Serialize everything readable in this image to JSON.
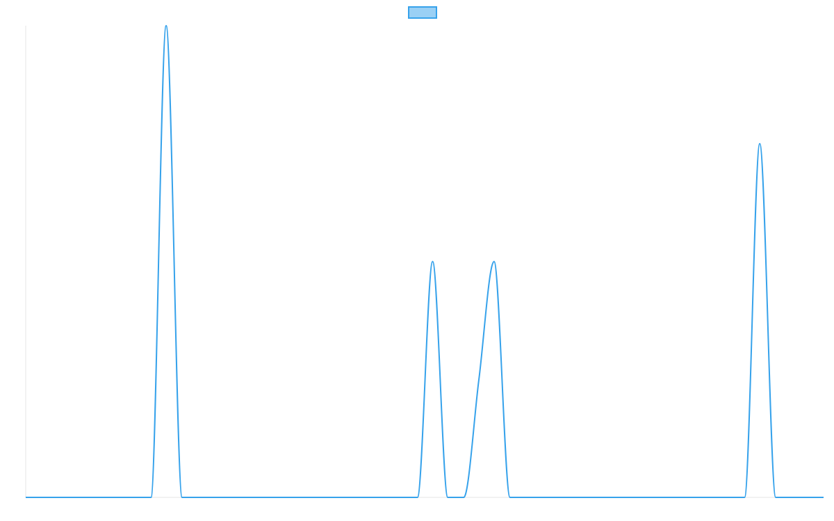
{
  "chart_data": {
    "type": "line",
    "title": "",
    "xlabel": "",
    "ylabel": "",
    "xlim": [
      0,
      100
    ],
    "ylim": [
      0,
      100
    ],
    "grid": false,
    "legend": {
      "placement": "top-center",
      "entries": [
        {
          "label": "",
          "color": "#36a2eb",
          "fill": "#9ad0f5"
        }
      ]
    },
    "series": [
      {
        "color": "#36a2eb",
        "fill": false,
        "x": [
          0,
          15.7,
          17.6,
          19.6,
          49.1,
          51.0,
          52.9,
          54.9,
          56.8,
          58.7,
          60.7,
          90.1,
          92.0,
          94.0,
          100
        ],
        "y": [
          0,
          0,
          100,
          0,
          0,
          50,
          0,
          0,
          25,
          50,
          0,
          0,
          75,
          0,
          0
        ]
      }
    ]
  }
}
